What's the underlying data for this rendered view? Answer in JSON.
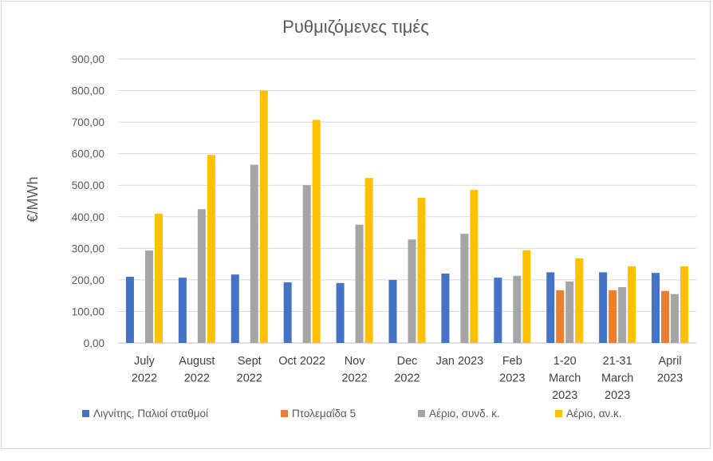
{
  "chart_data": {
    "type": "bar",
    "title": "Ρυθμιζόμενες τιμές",
    "xlabel": "",
    "ylabel": "€/MWh",
    "ylim": [
      0,
      900
    ],
    "yticks": [
      "0,00",
      "100,00",
      "200,00",
      "300,00",
      "400,00",
      "500,00",
      "600,00",
      "700,00",
      "800,00",
      "900,00"
    ],
    "grid": true,
    "legend_position": "bottom",
    "categories": [
      [
        "July",
        "2022"
      ],
      [
        "August",
        "2022"
      ],
      [
        "Sept",
        "2022"
      ],
      [
        "Oct 2022"
      ],
      [
        "Nov",
        "2022"
      ],
      [
        "Dec",
        "2022"
      ],
      [
        "Jan 2023"
      ],
      [
        "Feb",
        "2023"
      ],
      [
        "1-20",
        "March",
        "2023"
      ],
      [
        "21-31",
        "March",
        "2023"
      ],
      [
        "April",
        "2023"
      ]
    ],
    "series": [
      {
        "name": "Λιγνίτης, Παλιοί σταθμοί",
        "color": "#4472C4",
        "values": [
          210,
          207,
          217,
          192,
          190,
          200,
          220,
          207,
          224,
          224,
          222
        ]
      },
      {
        "name": "Πτολεμαΐδα 5",
        "color": "#ED7D31",
        "values": [
          null,
          null,
          null,
          null,
          null,
          null,
          null,
          null,
          167,
          167,
          165
        ]
      },
      {
        "name": "Αέριο, συνδ. κ.",
        "color": "#A5A5A5",
        "values": [
          293,
          424,
          565,
          500,
          375,
          328,
          346,
          213,
          195,
          177,
          155
        ]
      },
      {
        "name": "Αέριο, αν.κ.",
        "color": "#FFC000",
        "values": [
          410,
          596,
          800,
          707,
          523,
          460,
          485,
          294,
          268,
          243,
          243
        ]
      }
    ]
  }
}
